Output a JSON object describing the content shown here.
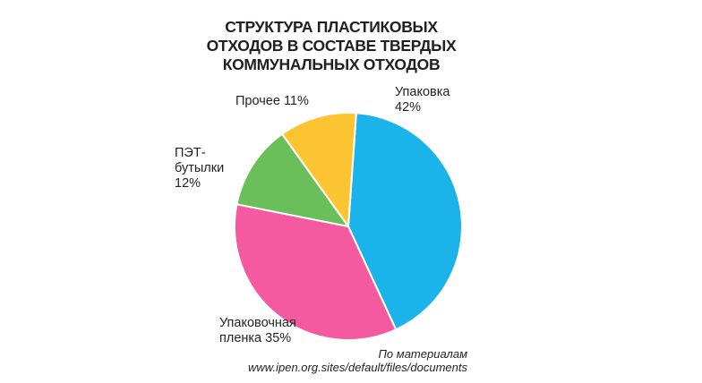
{
  "chart_data": {
    "type": "pie",
    "title_lines": [
      "СТРУКТУРА ПЛАСТИКОВЫХ",
      "ОТХОДОВ В СОСТАВЕ ТВЕРДЫХ",
      "КОММУНАЛЬНЫХ ОТХОДОВ"
    ],
    "slices": [
      {
        "label_lines": [
          "Упаковка",
          "42%"
        ],
        "value": 42,
        "color": "#1ab4ea"
      },
      {
        "label_lines": [
          "Упаковочная",
          "пленка 35%"
        ],
        "value": 35,
        "color": "#f55aa0"
      },
      {
        "label_lines": [
          "ПЭТ-",
          "бутылки",
          "12%"
        ],
        "value": 12,
        "color": "#6abf5a"
      },
      {
        "label_lines": [
          "Прочее 11%"
        ],
        "value": 11,
        "color": "#fdc431"
      }
    ],
    "source_lines": [
      "По материалам",
      "www.ipen.org.sites/default/files/documents"
    ]
  }
}
